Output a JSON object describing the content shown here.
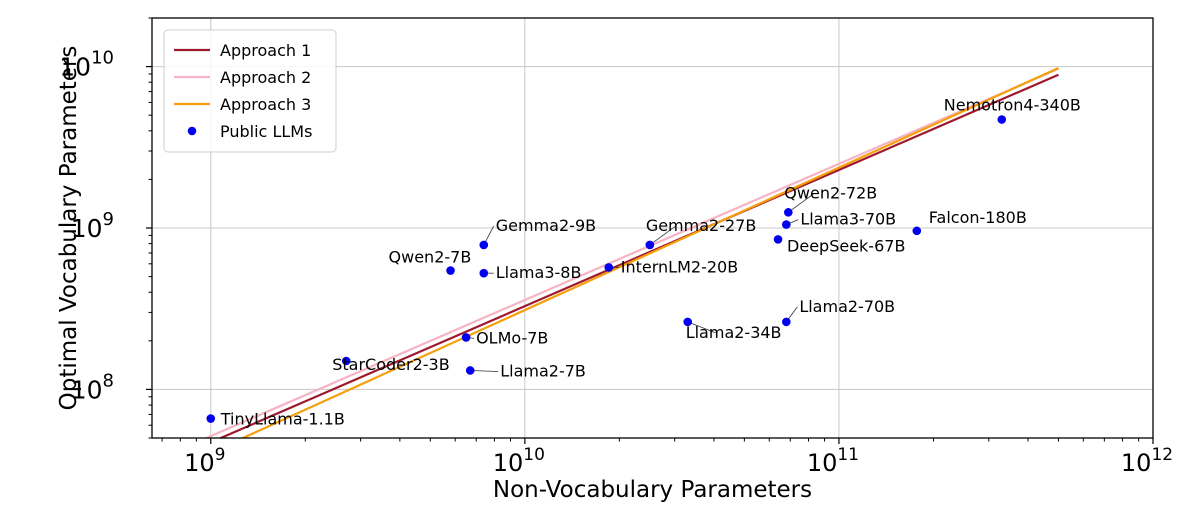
{
  "chart_data": {
    "type": "scatter",
    "xlabel": "Non-Vocabulary Parameters",
    "ylabel": "Optimal Vocabulary Parameters",
    "xscale": "log",
    "yscale": "log",
    "xlim": [
      650000000,
      1000000000000
    ],
    "ylim": [
      50000000,
      20000000000
    ],
    "grid": true,
    "legend_loc": "upper left",
    "x_ticks": [
      {
        "value": 1000000000,
        "base": "10",
        "exp": "9"
      },
      {
        "value": 10000000000,
        "base": "10",
        "exp": "10"
      },
      {
        "value": 100000000000,
        "base": "10",
        "exp": "11"
      },
      {
        "value": 1000000000000,
        "base": "10",
        "exp": "12"
      }
    ],
    "y_ticks": [
      {
        "value": 100000000,
        "base": "10",
        "exp": "8"
      },
      {
        "value": 1000000000,
        "base": "10",
        "exp": "9"
      },
      {
        "value": 10000000000,
        "base": "10",
        "exp": "10"
      }
    ],
    "series": [
      {
        "name": "Approach 1",
        "kind": "line",
        "color": "#a0182e",
        "x": [
          900000000,
          500000000000
        ],
        "y": [
          43000000,
          8900000000
        ]
      },
      {
        "name": "Approach 2",
        "kind": "line",
        "color": "#f6b3c3",
        "x": [
          900000000,
          500000000000
        ],
        "y": [
          47000000,
          9700000000
        ]
      },
      {
        "name": "Approach 3",
        "kind": "line",
        "color": "#f59f0a",
        "x": [
          900000000,
          500000000000
        ],
        "y": [
          37000000,
          9800000000
        ]
      },
      {
        "name": "Public LLMs",
        "kind": "scatter",
        "color": "#0000ee",
        "points": [
          {
            "label": "TinyLlama-1.1B",
            "x": 1000000000,
            "y": 66000000
          },
          {
            "label": "StarCoder2-3B",
            "x": 2700000000,
            "y": 150000000
          },
          {
            "label": "OLMo-7B",
            "x": 6500000000,
            "y": 210000000
          },
          {
            "label": "Llama2-7B",
            "x": 6700000000,
            "y": 131000000
          },
          {
            "label": "Qwen2-7B",
            "x": 5800000000,
            "y": 545000000
          },
          {
            "label": "Gemma2-9B",
            "x": 7400000000,
            "y": 785000000
          },
          {
            "label": "Llama3-8B",
            "x": 7400000000,
            "y": 525000000
          },
          {
            "label": "InternLM2-20B",
            "x": 18500000000,
            "y": 570000000
          },
          {
            "label": "Gemma2-27B",
            "x": 25000000000,
            "y": 785000000
          },
          {
            "label": "Llama2-34B",
            "x": 33000000000,
            "y": 262000000
          },
          {
            "label": "DeepSeek-67B",
            "x": 64000000000,
            "y": 850000000
          },
          {
            "label": "Llama2-70B",
            "x": 68000000000,
            "y": 262000000
          },
          {
            "label": "Llama3-70B",
            "x": 68000000000,
            "y": 1050000000
          },
          {
            "label": "Qwen2-72B",
            "x": 69000000000,
            "y": 1250000000
          },
          {
            "label": "Falcon-180B",
            "x": 177000000000,
            "y": 960000000
          },
          {
            "label": "Nemotron4-340B",
            "x": 330000000000,
            "y": 4700000000
          }
        ]
      }
    ]
  }
}
